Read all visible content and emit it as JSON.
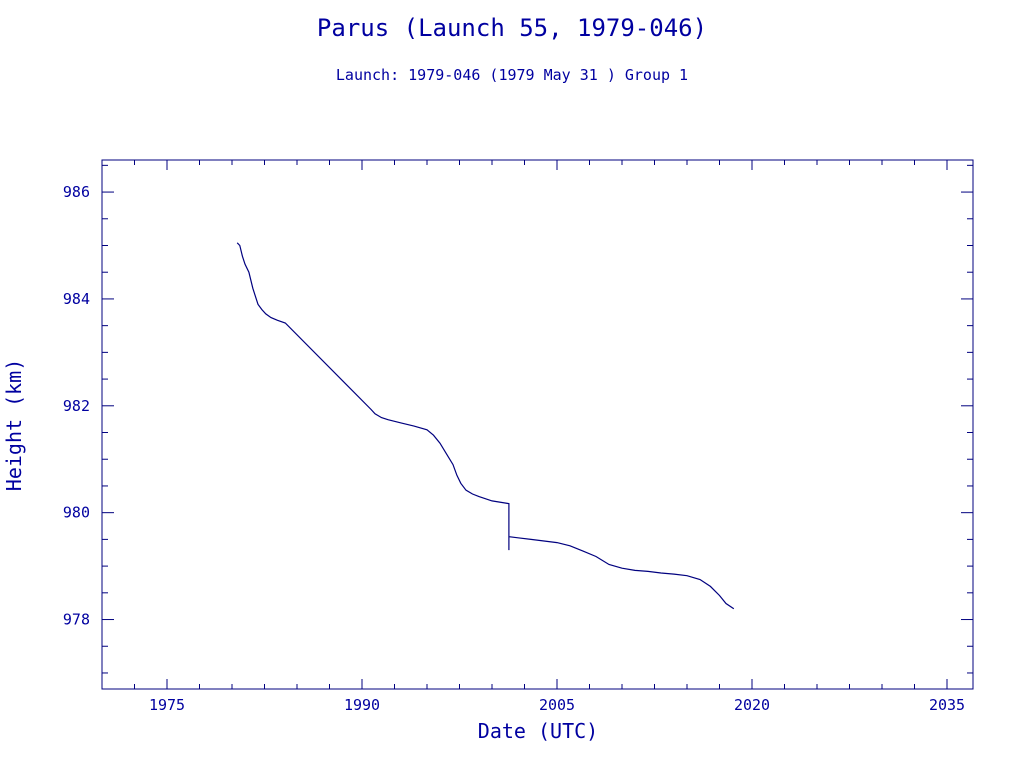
{
  "chart_data": {
    "type": "line",
    "title": "Parus (Launch 55, 1979-046)",
    "subtitle": "Launch: 1979-046  (1979 May 31 )  Group 1",
    "xlabel": "Date (UTC)",
    "ylabel": "Height (km)",
    "xlim": [
      1970,
      2037
    ],
    "ylim": [
      976.7,
      986.6
    ],
    "xticks": [
      1975,
      1990,
      2005,
      2020,
      2035
    ],
    "yticks": [
      978,
      980,
      982,
      984,
      986
    ],
    "grid": false,
    "series": [
      {
        "color": "#00007f",
        "points": [
          [
            1980.4,
            985.05
          ],
          [
            1980.6,
            985.0
          ],
          [
            1980.8,
            984.8
          ],
          [
            1981.0,
            984.65
          ],
          [
            1981.3,
            984.5
          ],
          [
            1981.6,
            984.2
          ],
          [
            1981.8,
            984.05
          ],
          [
            1982.0,
            983.9
          ],
          [
            1982.3,
            983.8
          ],
          [
            1982.6,
            983.72
          ],
          [
            1983.0,
            983.65
          ],
          [
            1983.5,
            983.6
          ],
          [
            1984.1,
            983.55
          ],
          [
            1990.7,
            981.93
          ],
          [
            1991.0,
            981.85
          ],
          [
            1991.5,
            981.78
          ],
          [
            1992.0,
            981.74
          ],
          [
            1993.0,
            981.68
          ],
          [
            1994.0,
            981.62
          ],
          [
            1995.0,
            981.55
          ],
          [
            1995.5,
            981.45
          ],
          [
            1996.0,
            981.3
          ],
          [
            1996.5,
            981.1
          ],
          [
            1997.0,
            980.9
          ],
          [
            1997.3,
            980.7
          ],
          [
            1997.6,
            980.55
          ],
          [
            1998.0,
            980.42
          ],
          [
            1998.5,
            980.35
          ],
          [
            1999.0,
            980.3
          ],
          [
            2000.0,
            980.22
          ],
          [
            2001.3,
            980.17
          ],
          [
            2001.3,
            979.3
          ],
          [
            2001.3,
            979.55
          ],
          [
            2002.0,
            979.53
          ],
          [
            2003.0,
            979.5
          ],
          [
            2004.0,
            979.47
          ],
          [
            2005.0,
            979.44
          ],
          [
            2006.0,
            979.38
          ],
          [
            2007.0,
            979.28
          ],
          [
            2008.0,
            979.18
          ],
          [
            2009.0,
            979.03
          ],
          [
            2010.0,
            978.96
          ],
          [
            2011.0,
            978.92
          ],
          [
            2012.0,
            978.9
          ],
          [
            2013.0,
            978.87
          ],
          [
            2014.0,
            978.85
          ],
          [
            2015.0,
            978.82
          ],
          [
            2016.0,
            978.75
          ],
          [
            2016.8,
            978.62
          ],
          [
            2017.5,
            978.45
          ],
          [
            2018.0,
            978.3
          ],
          [
            2018.6,
            978.2
          ]
        ]
      }
    ]
  }
}
